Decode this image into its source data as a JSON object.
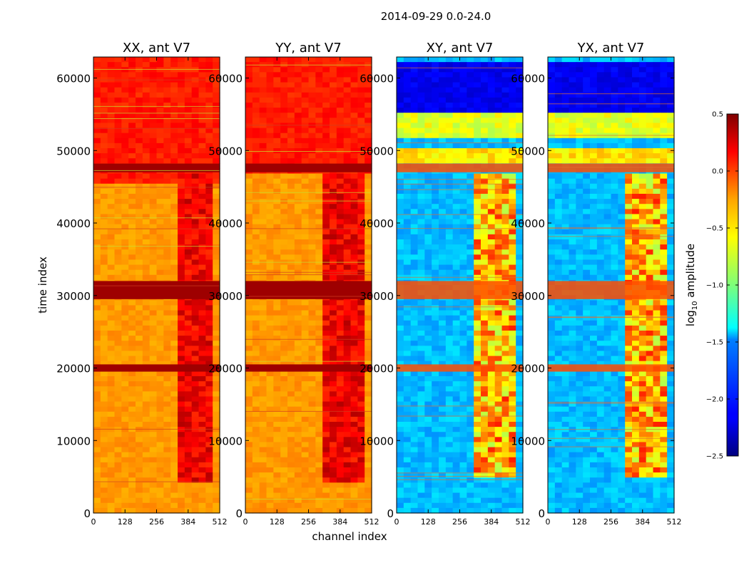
{
  "figure": {
    "suptitle": "2014-09-29 0.0-24.0"
  },
  "chart_data": {
    "type": "heatmap",
    "xlabel": "channel index",
    "ylabel": "time index",
    "xlim": [
      0,
      512
    ],
    "ylim": [
      0,
      62900
    ],
    "xticks": [
      0,
      128,
      256,
      384,
      512
    ],
    "yticks": [
      0,
      10000,
      20000,
      30000,
      40000,
      50000,
      60000
    ],
    "panels": [
      {
        "title": "XX, ant V7",
        "kind": "parallel",
        "gap_start": 330,
        "gap_end": 495,
        "upper_start": 45500
      },
      {
        "title": "YY, ant V7",
        "kind": "parallel",
        "gap_start": 320,
        "gap_end": 480,
        "upper_start": 47000
      },
      {
        "title": "XY, ant V7",
        "kind": "cross",
        "gap_start": 320,
        "gap_end": 480,
        "upper_start": 47000
      },
      {
        "title": "YX, ant V7",
        "kind": "cross",
        "gap_start": 320,
        "gap_end": 480,
        "upper_start": 47000
      }
    ],
    "bright_bands": [
      {
        "t0": 29500,
        "t1": 32000
      },
      {
        "t0": 19500,
        "t1": 20500
      },
      {
        "t0": 47000,
        "t1": 48200
      }
    ],
    "colorbar": {
      "label_main": "log",
      "label_sub": "10",
      "label_rest": " amplitude",
      "vmin": -2.5,
      "vmax": 0.5,
      "ticks": [
        0.5,
        0.0,
        -0.5,
        -1.0,
        -1.5,
        -2.0,
        -2.5
      ],
      "tick_labels": [
        "0.5",
        "0.0",
        "−0.5",
        "−1.0",
        "−1.5",
        "−2.0",
        "−2.5"
      ],
      "colormap": "jet"
    }
  }
}
